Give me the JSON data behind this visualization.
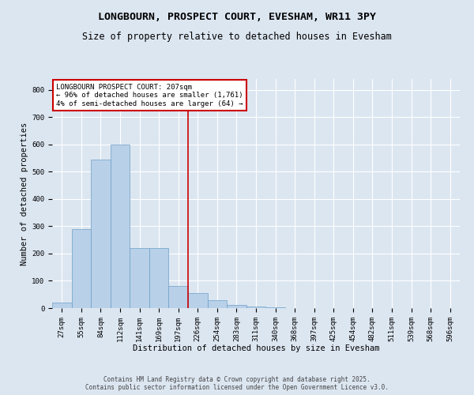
{
  "title1": "LONGBOURN, PROSPECT COURT, EVESHAM, WR11 3PY",
  "title2": "Size of property relative to detached houses in Evesham",
  "xlabel": "Distribution of detached houses by size in Evesham",
  "ylabel": "Number of detached properties",
  "annotation_title": "LONGBOURN PROSPECT COURT: 207sqm",
  "annotation_line1": "← 96% of detached houses are smaller (1,761)",
  "annotation_line2": "4% of semi-detached houses are larger (64) →",
  "footer1": "Contains HM Land Registry data © Crown copyright and database right 2025.",
  "footer2": "Contains public sector information licensed under the Open Government Licence v3.0.",
  "bar_labels": [
    "27sqm",
    "55sqm",
    "84sqm",
    "112sqm",
    "141sqm",
    "169sqm",
    "197sqm",
    "226sqm",
    "254sqm",
    "283sqm",
    "311sqm",
    "340sqm",
    "368sqm",
    "397sqm",
    "425sqm",
    "454sqm",
    "482sqm",
    "511sqm",
    "539sqm",
    "568sqm",
    "596sqm"
  ],
  "bar_values": [
    20,
    290,
    545,
    600,
    220,
    220,
    80,
    55,
    30,
    12,
    5,
    2,
    0,
    0,
    0,
    0,
    0,
    0,
    0,
    0,
    0
  ],
  "bar_color": "#b8d0e8",
  "bar_edge_color": "#6ca0c8",
  "vline_x_index": 6.5,
  "vline_color": "#cc0000",
  "annotation_box_color": "#cc0000",
  "background_color": "#dce6f1",
  "plot_bg_color": "#dce6f1",
  "ylim": [
    0,
    840
  ],
  "yticks": [
    0,
    100,
    200,
    300,
    400,
    500,
    600,
    700,
    800
  ],
  "grid_color": "#ffffff",
  "title_fontsize": 9.5,
  "subtitle_fontsize": 8.5,
  "axis_label_fontsize": 7.5,
  "tick_fontsize": 6.5,
  "annotation_fontsize": 6.5,
  "footer_fontsize": 5.5
}
